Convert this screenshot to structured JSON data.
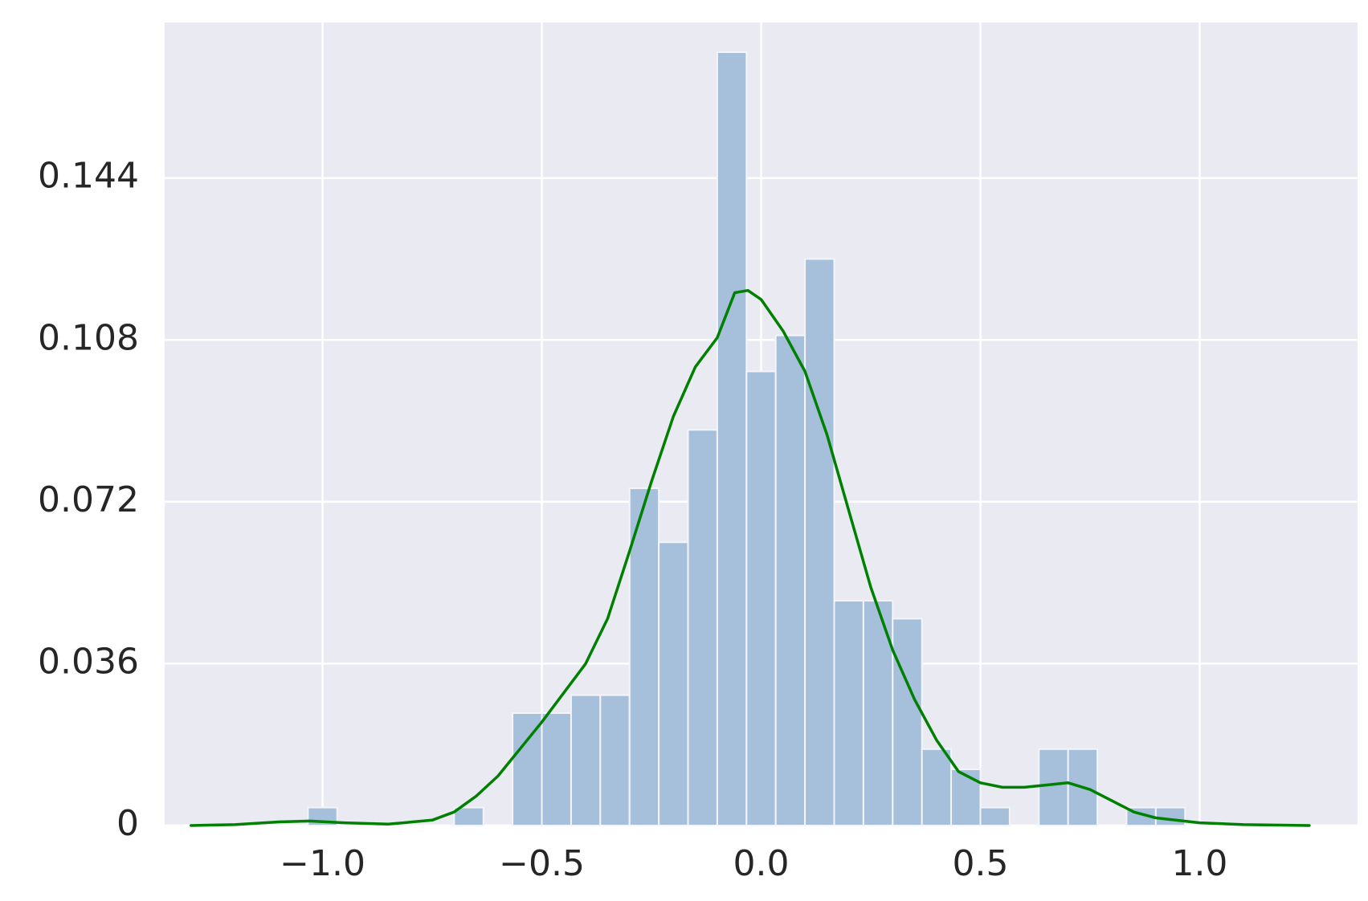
{
  "chart_data": {
    "type": "bar",
    "title": "",
    "xlabel": "",
    "ylabel": "",
    "xlim": [
      -1.36,
      1.36
    ],
    "ylim": [
      0,
      0.1786
    ],
    "x_ticks": [
      {
        "value": -1.0,
        "label": "−1.0"
      },
      {
        "value": -0.5,
        "label": "−0.5"
      },
      {
        "value": 0.0,
        "label": "0.0"
      },
      {
        "value": 0.5,
        "label": "0.5"
      },
      {
        "value": 1.0,
        "label": "1.0"
      }
    ],
    "y_ticks": [
      {
        "value": 0,
        "label": "0"
      },
      {
        "value": 0.036,
        "label": "0.036"
      },
      {
        "value": 0.072,
        "label": "0.072"
      },
      {
        "value": 0.108,
        "label": "0.108"
      },
      {
        "value": 0.144,
        "label": "0.144"
      }
    ],
    "grid": true,
    "legend": "none",
    "colors": {
      "background": "#eaeaf2",
      "grid": "#ffffff",
      "bar": "#a6bfdb",
      "bar_edge": "#f3f5fa",
      "kde_line": "#008000"
    },
    "histogram": {
      "bins": [
        {
          "x0": -1.0333,
          "x1": -0.9667,
          "value": 0.004
        },
        {
          "x0": -0.7,
          "x1": -0.6333,
          "value": 0.004
        },
        {
          "x0": -0.5667,
          "x1": -0.5,
          "value": 0.025
        },
        {
          "x0": -0.5,
          "x1": -0.4333,
          "value": 0.025
        },
        {
          "x0": -0.4333,
          "x1": -0.3667,
          "value": 0.029
        },
        {
          "x0": -0.3667,
          "x1": -0.3,
          "value": 0.029
        },
        {
          "x0": -0.3,
          "x1": -0.2333,
          "value": 0.075
        },
        {
          "x0": -0.2333,
          "x1": -0.1667,
          "value": 0.063
        },
        {
          "x0": -0.1667,
          "x1": -0.1,
          "value": 0.088
        },
        {
          "x0": -0.1,
          "x1": -0.0333,
          "value": 0.172
        },
        {
          "x0": -0.0333,
          "x1": 0.0333,
          "value": 0.101
        },
        {
          "x0": 0.0333,
          "x1": 0.1,
          "value": 0.109
        },
        {
          "x0": 0.1,
          "x1": 0.1667,
          "value": 0.126
        },
        {
          "x0": 0.1667,
          "x1": 0.2333,
          "value": 0.05
        },
        {
          "x0": 0.2333,
          "x1": 0.3,
          "value": 0.05
        },
        {
          "x0": 0.3,
          "x1": 0.3667,
          "value": 0.046
        },
        {
          "x0": 0.3667,
          "x1": 0.4333,
          "value": 0.017
        },
        {
          "x0": 0.4333,
          "x1": 0.5,
          "value": 0.0125
        },
        {
          "x0": 0.5,
          "x1": 0.5667,
          "value": 0.004
        },
        {
          "x0": 0.6333,
          "x1": 0.7,
          "value": 0.017
        },
        {
          "x0": 0.7,
          "x1": 0.7667,
          "value": 0.017
        },
        {
          "x0": 0.8333,
          "x1": 0.9,
          "value": 0.004
        },
        {
          "x0": 0.9,
          "x1": 0.9667,
          "value": 0.004
        }
      ]
    },
    "kde": {
      "x": [
        -1.3,
        -1.2,
        -1.1,
        -1.03,
        -0.95,
        -0.85,
        -0.75,
        -0.7,
        -0.65,
        -0.6,
        -0.55,
        -0.5,
        -0.45,
        -0.4,
        -0.35,
        -0.3,
        -0.25,
        -0.2,
        -0.15,
        -0.1,
        -0.06,
        -0.03,
        0.0,
        0.05,
        0.1,
        0.15,
        0.2,
        0.25,
        0.3,
        0.35,
        0.4,
        0.45,
        0.5,
        0.55,
        0.6,
        0.65,
        0.7,
        0.75,
        0.8,
        0.85,
        0.9,
        1.0,
        1.1,
        1.25
      ],
      "y": [
        0.0,
        0.0002,
        0.0008,
        0.001,
        0.0006,
        0.0003,
        0.0012,
        0.003,
        0.0065,
        0.011,
        0.017,
        0.023,
        0.0295,
        0.036,
        0.046,
        0.061,
        0.0765,
        0.091,
        0.102,
        0.1085,
        0.1185,
        0.119,
        0.117,
        0.11,
        0.101,
        0.087,
        0.07,
        0.053,
        0.039,
        0.028,
        0.019,
        0.012,
        0.0095,
        0.0085,
        0.0085,
        0.009,
        0.0095,
        0.008,
        0.0055,
        0.003,
        0.0017,
        0.0006,
        0.0002,
        0.0
      ]
    }
  }
}
